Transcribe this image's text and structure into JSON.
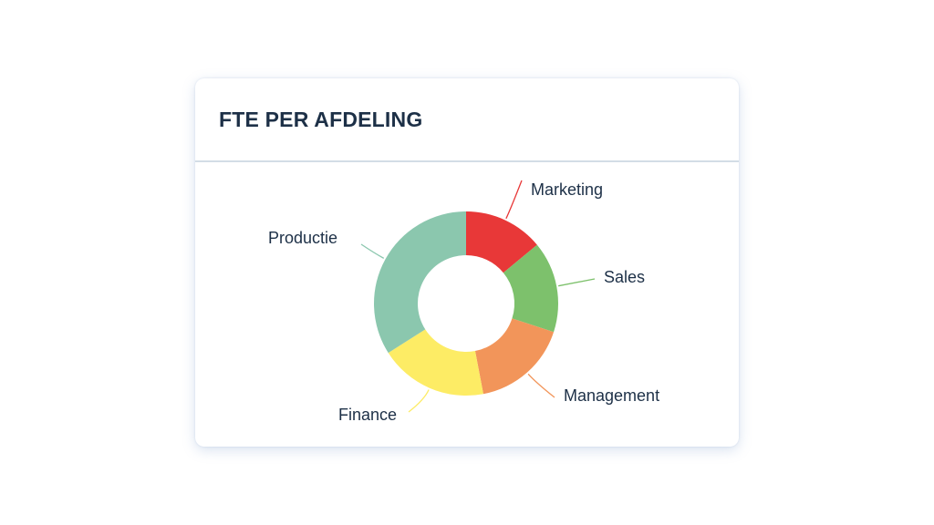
{
  "card": {
    "title": "FTE PER AFDELING"
  },
  "chart_data": {
    "type": "pie",
    "title": "FTE PER AFDELING",
    "donut": true,
    "start_angle_deg": 0,
    "direction": "clockwise",
    "slices": [
      {
        "label": "Marketing",
        "value": 14,
        "color": "#e83838"
      },
      {
        "label": "Sales",
        "value": 16,
        "color": "#7dc16c"
      },
      {
        "label": "Management",
        "value": 17,
        "color": "#f2955a"
      },
      {
        "label": "Finance",
        "value": 19,
        "color": "#fdec65"
      },
      {
        "label": "Productie",
        "value": 34,
        "color": "#8bc7ae"
      }
    ]
  }
}
